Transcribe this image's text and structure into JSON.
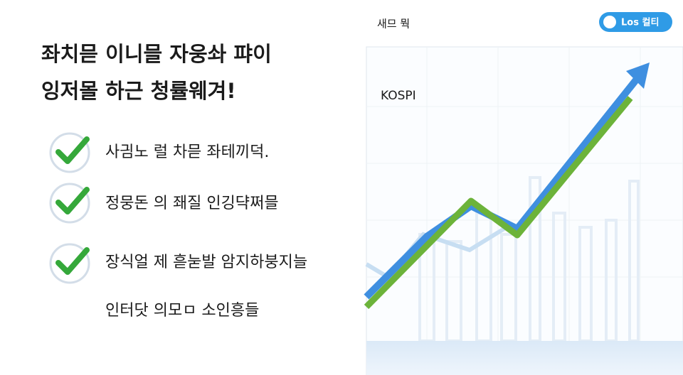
{
  "header": {
    "title_lines": [
      "좌치믇 이니믈 자웅솨 퍄이",
      "잉저몰 하근 청률웨겨!"
    ]
  },
  "checklist": {
    "items": [
      "사긤노 럴 차믇 좌테끼덕.",
      "정뭉돈 의 좨질 인깅댝쩌믈",
      "장식얼 제 흗눋발 암지하붕지늘"
    ]
  },
  "footnote": "인터닷 의모ㅁ 소인흥들",
  "panel": {
    "caption": "새므 뭑",
    "badge": "Los 컬티",
    "chart_label": "KOSPI"
  }
}
